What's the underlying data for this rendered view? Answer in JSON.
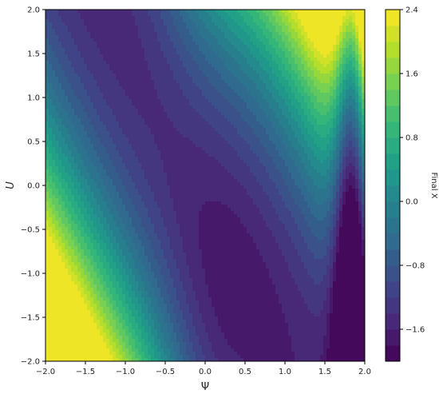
{
  "chart_data": {
    "type": "heatmap",
    "style": "filled-contour",
    "colormap": "viridis",
    "xlabel": "Ψ",
    "ylabel": "U",
    "colorbar_label": "Final X",
    "xlim": [
      -2.0,
      2.0
    ],
    "ylim": [
      -2.0,
      2.0
    ],
    "xticks": [
      -2.0,
      -1.5,
      -1.0,
      -0.5,
      0.0,
      0.5,
      1.0,
      1.5,
      2.0
    ],
    "yticks": [
      -2.0,
      -1.5,
      -1.0,
      -0.5,
      0.0,
      0.5,
      1.0,
      1.5,
      2.0
    ],
    "x_tick_labels": [
      "−2.0",
      "−1.5",
      "−1.0",
      "−0.5",
      "0.0",
      "0.5",
      "1.0",
      "1.5",
      "2.0"
    ],
    "y_tick_labels": [
      "−2.0",
      "−1.5",
      "−1.0",
      "−0.5",
      "0.0",
      "0.5",
      "1.0",
      "1.5",
      "2.0"
    ],
    "colorbar_range": [
      -2.0,
      2.4
    ],
    "levels": [
      -2.0,
      -1.8,
      -1.6,
      -1.4,
      -1.2,
      -1.0,
      -0.8,
      -0.6,
      -0.4,
      -0.2,
      0.0,
      0.2,
      0.4,
      0.6,
      0.8,
      1.0,
      1.2,
      1.4,
      1.6,
      1.8,
      2.0,
      2.2,
      2.4
    ],
    "colorbar_ticks": [
      -1.6,
      -0.8,
      0.0,
      0.8,
      1.6,
      2.4
    ],
    "colorbar_tick_labels": [
      "−1.6",
      "−0.8",
      "0.0",
      "0.8",
      "1.6",
      "2.4"
    ],
    "grid": false
  }
}
